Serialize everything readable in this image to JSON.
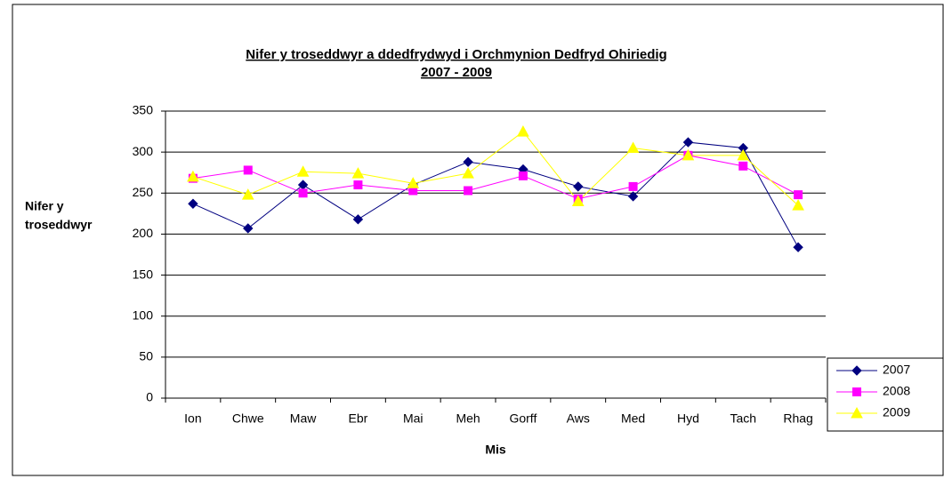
{
  "chart_data": {
    "type": "line",
    "title": [
      "Nifer y troseddwyr a ddedfrydwyd i Orchmynion Dedfryd Ohiriedig",
      "2007 - 2009"
    ],
    "ylabel": [
      "Nifer y",
      "troseddwyr"
    ],
    "xlabel": "Mis",
    "categories": [
      "Ion",
      "Chwe",
      "Maw",
      "Ebr",
      "Mai",
      "Meh",
      "Gorff",
      "Aws",
      "Med",
      "Hyd",
      "Tach",
      "Rhag"
    ],
    "series": [
      {
        "name": "2007",
        "color": "#000080",
        "marker": "diamond",
        "values": [
          237,
          207,
          260,
          218,
          260,
          288,
          279,
          258,
          246,
          312,
          305,
          184
        ]
      },
      {
        "name": "2008",
        "color": "#ff00ff",
        "marker": "square",
        "values": [
          268,
          278,
          250,
          260,
          253,
          253,
          271,
          243,
          258,
          296,
          283,
          248
        ]
      },
      {
        "name": "2009",
        "color": "#ffff00",
        "marker": "triangle",
        "values": [
          270,
          248,
          276,
          274,
          262,
          274,
          325,
          240,
          305,
          296,
          296,
          235
        ]
      }
    ],
    "ylim": [
      0,
      350
    ],
    "yticks": [
      0,
      50,
      100,
      150,
      200,
      250,
      300,
      350
    ],
    "grid": true,
    "legend": "right"
  }
}
